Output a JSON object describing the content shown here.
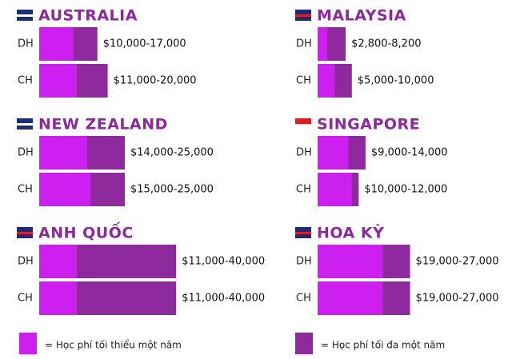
{
  "legend": [
    {
      "label": "= Học phí tối thiểu một năm",
      "color": "#cc1ff0"
    },
    {
      "label": "= Học phí tối đa một năm",
      "color": "#8e2a9e"
    }
  ],
  "chart_data": [
    {
      "type": "bar",
      "title": "AUSTRALIA",
      "categories": [
        "DH",
        "CH"
      ],
      "series": [
        {
          "color": "#cc1ff0",
          "values": [
            10000,
            11000
          ]
        },
        {
          "color": "#8e2a9e",
          "values": [
            17000,
            20000
          ]
        }
      ],
      "value_labels": [
        "$10,000-17,000",
        "$11,000-20,000"
      ]
    },
    {
      "type": "bar",
      "title": "MALAYSIA",
      "categories": [
        "DH",
        "CH"
      ],
      "series": [
        {
          "color": "#cc1ff0",
          "values": [
            2800,
            5000
          ]
        },
        {
          "color": "#8e2a9e",
          "values": [
            8200,
            10000
          ]
        }
      ],
      "value_labels": [
        "$2,800-8,200",
        "$5,000-10,000"
      ]
    },
    {
      "type": "bar",
      "title": "NEW ZEALAND",
      "categories": [
        "DH",
        "CH"
      ],
      "series": [
        {
          "color": "#cc1ff0",
          "values": [
            14000,
            15000
          ]
        },
        {
          "color": "#8e2a9e",
          "values": [
            25000,
            25000
          ]
        }
      ],
      "value_labels": [
        "$14,000-25,000",
        "$15,000-25,000"
      ]
    },
    {
      "type": "bar",
      "title": "SINGAPORE",
      "categories": [
        "DH",
        "CH"
      ],
      "series": [
        {
          "color": "#cc1ff0",
          "values": [
            9000,
            10000
          ]
        },
        {
          "color": "#8e2a9e",
          "values": [
            14000,
            12000
          ]
        }
      ],
      "value_labels": [
        "$9,000-14,000",
        "$10,000-12,000"
      ]
    },
    {
      "type": "bar",
      "title": "ANH QUỐC",
      "categories": [
        "DH",
        "CH"
      ],
      "series": [
        {
          "color": "#cc1ff0",
          "values": [
            11000,
            11000
          ]
        },
        {
          "color": "#8e2a9e",
          "values": [
            40000,
            40000
          ]
        }
      ],
      "value_labels": [
        "$11,000-40,000",
        "$11,000-40,000"
      ]
    },
    {
      "type": "bar",
      "title": "HOA KỲ",
      "categories": [
        "DH",
        "CH"
      ],
      "series": [
        {
          "color": "#cc1ff0",
          "values": [
            19000,
            19000
          ]
        },
        {
          "color": "#8e2a9e",
          "values": [
            27000,
            27000
          ]
        }
      ],
      "value_labels": [
        "$19,000-27,000",
        "$19,000-27,000"
      ]
    }
  ]
}
